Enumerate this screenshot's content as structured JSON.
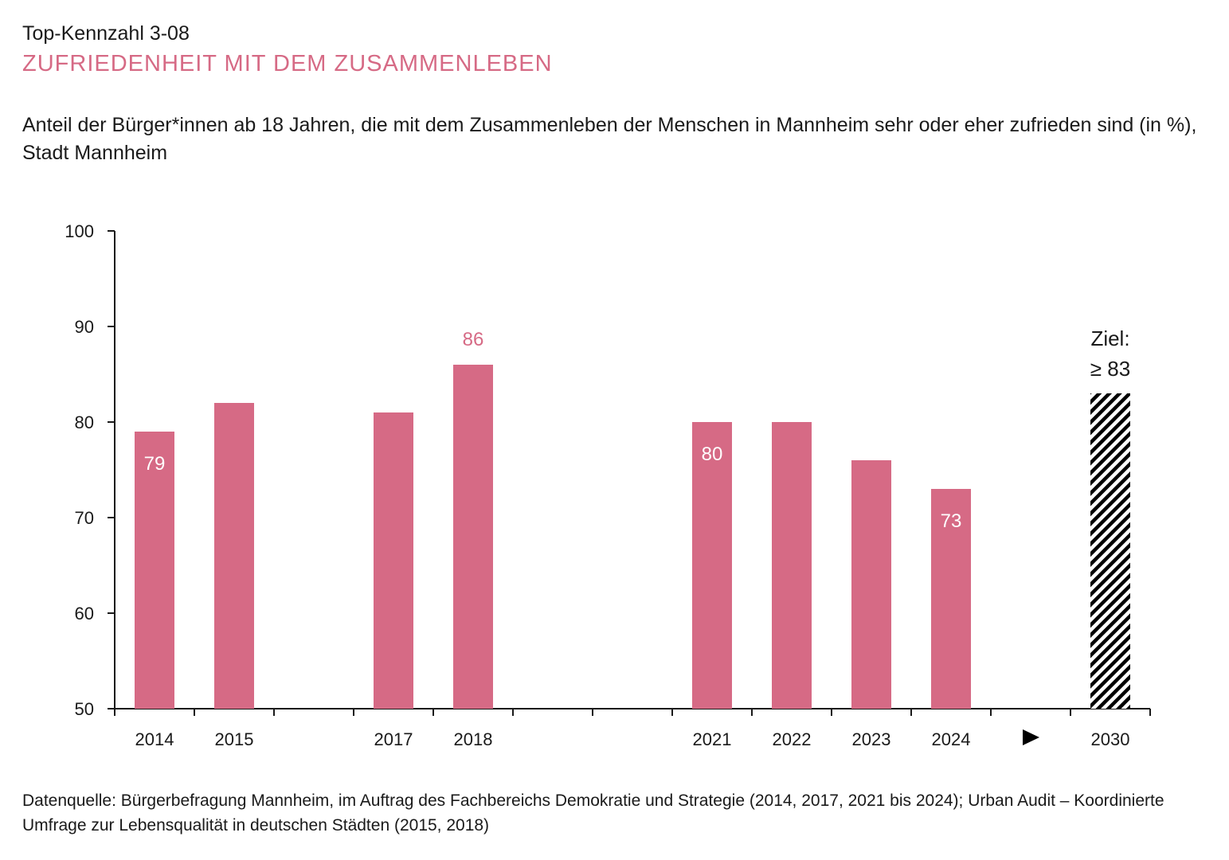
{
  "header": {
    "kennzahl": "Top-Kennzahl 3-08",
    "title": "ZUFRIEDENHEIT MIT DEM ZUSAMMENLEBEN",
    "subtitle": "Anteil der Bürger*innen ab 18 Jahren, die mit dem Zusammenleben der Menschen in Mannheim sehr oder eher zufrieden sind (in %), Stadt Mannheim"
  },
  "footer": {
    "source": "Datenquelle: Bürgerbefragung Mannheim, im Auftrag des Fachbereichs Demokratie und Strategie (2014, 2017, 2021 bis 2024); Urban Audit – Koordinierte Umfrage zur Lebensqualität in deutschen Städten (2015, 2018)"
  },
  "colors": {
    "bar": "#d66a85",
    "title": "#d66a85",
    "axis": "#1a1a1a",
    "goal_hatch": "#000000"
  },
  "chart_data": {
    "type": "bar",
    "title": "Zufriedenheit mit dem Zusammenleben",
    "xlabel": "",
    "ylabel": "",
    "ylim": [
      50,
      100
    ],
    "yticks": [
      50,
      60,
      70,
      80,
      90,
      100
    ],
    "grid": false,
    "categories": [
      "2014",
      "2015",
      "",
      "2017",
      "2018",
      "",
      "",
      "2021",
      "2022",
      "2023",
      "2024",
      "▶",
      "2030"
    ],
    "values": [
      79,
      82,
      null,
      81,
      86,
      null,
      null,
      80,
      80,
      76,
      73,
      null,
      83
    ],
    "data_labels": [
      {
        "category": "2014",
        "text": "79",
        "position": "inside",
        "color": "#ffffff"
      },
      {
        "category": "2018",
        "text": "86",
        "position": "above",
        "color": "#d66a85"
      },
      {
        "category": "2021",
        "text": "80",
        "position": "inside",
        "color": "#ffffff"
      },
      {
        "category": "2024",
        "text": "73",
        "position": "inside",
        "color": "#ffffff"
      }
    ],
    "goal": {
      "category": "2030",
      "value": 83,
      "label_line1": "Ziel:",
      "label_line2": "≥ 83",
      "style": "hatched"
    }
  }
}
